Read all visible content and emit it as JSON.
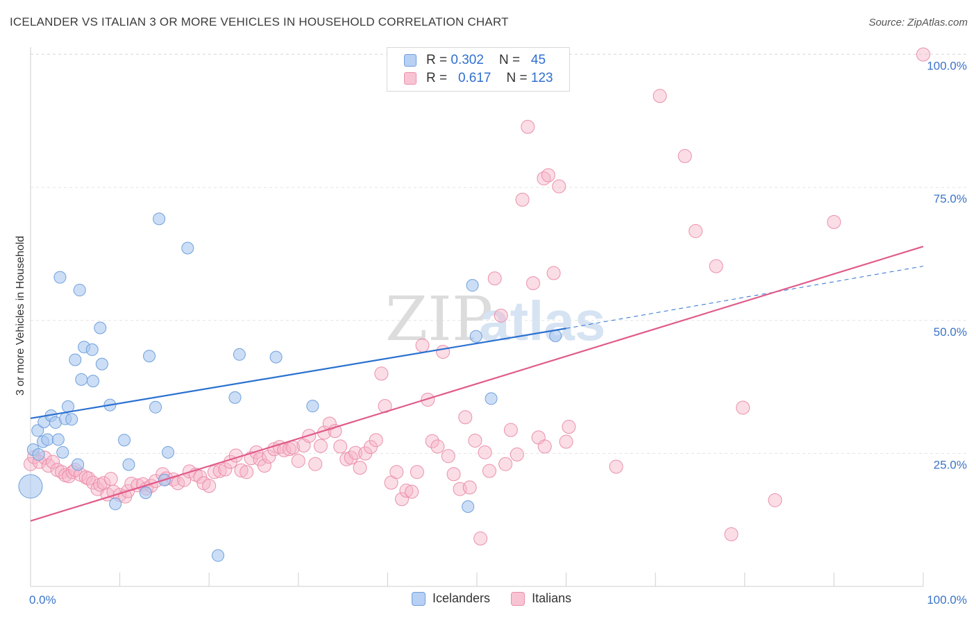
{
  "title": "ICELANDER VS ITALIAN 3 OR MORE VEHICLES IN HOUSEHOLD CORRELATION CHART",
  "source": "Source: ZipAtlas.com",
  "watermark": {
    "part1": "ZIP",
    "part2": "atlas"
  },
  "legend_top": {
    "rows": [
      {
        "r_label": "R =",
        "r_value": "0.302",
        "n_label": "N =",
        "n_value": "45"
      },
      {
        "r_label": "R =",
        "r_value": "0.617",
        "n_label": "N =",
        "n_value": "123"
      }
    ]
  },
  "legend_bottom": {
    "items": [
      "Icelanders",
      "Italians"
    ]
  },
  "colors": {
    "icelanders_fill": "#aac8f0",
    "icelanders_stroke": "#6f9fdc",
    "icelanders_line": "#2a70d0",
    "italians_fill": "#f6b4c8",
    "italians_stroke": "#ea8fac",
    "italians_line": "#e05a8a",
    "axis_text": "#3a74c8",
    "grid": "#e3e3e3"
  },
  "chart_data": {
    "type": "scatter",
    "title": "ICELANDER VS ITALIAN 3 OR MORE VEHICLES IN HOUSEHOLD CORRELATION CHART",
    "xlabel": "",
    "ylabel": "3 or more Vehicles in Household",
    "xlim": [
      0,
      100
    ],
    "ylim": [
      0,
      105
    ],
    "x_tick_labels": [
      "0.0%",
      "100.0%"
    ],
    "y_ticks": [
      {
        "value": 25,
        "label": "25.0%"
      },
      {
        "value": 50,
        "label": "50.0%"
      },
      {
        "value": 75,
        "label": "75.0%"
      },
      {
        "value": 100,
        "label": "100.0%"
      }
    ],
    "grid": true,
    "legend_position": "top-center",
    "series": [
      {
        "name": "Icelanders",
        "r": 0.302,
        "n": 45,
        "trend": {
          "x0": 0,
          "y0": 31.6,
          "x1": 60,
          "y1": 48.5,
          "dash_to_x": 100,
          "dash_to_y": 60.2
        },
        "points": [
          [
            0.0,
            18.8
          ],
          [
            0.3,
            25.7
          ],
          [
            0.8,
            29.3
          ],
          [
            0.9,
            24.8
          ],
          [
            1.4,
            27.2
          ],
          [
            1.5,
            30.9
          ],
          [
            1.9,
            27.6
          ],
          [
            2.3,
            32.1
          ],
          [
            2.8,
            30.8
          ],
          [
            3.1,
            27.6
          ],
          [
            3.3,
            58.1
          ],
          [
            3.6,
            25.2
          ],
          [
            3.9,
            31.5
          ],
          [
            4.2,
            33.8
          ],
          [
            4.6,
            31.4
          ],
          [
            5.0,
            42.6
          ],
          [
            5.3,
            22.9
          ],
          [
            5.5,
            55.7
          ],
          [
            5.7,
            38.9
          ],
          [
            6.0,
            45.0
          ],
          [
            6.9,
            44.5
          ],
          [
            7.0,
            38.6
          ],
          [
            7.8,
            48.6
          ],
          [
            8.0,
            41.8
          ],
          [
            8.9,
            34.1
          ],
          [
            9.5,
            15.5
          ],
          [
            10.5,
            27.5
          ],
          [
            11.0,
            22.9
          ],
          [
            12.9,
            17.6
          ],
          [
            13.3,
            43.3
          ],
          [
            14.0,
            33.7
          ],
          [
            14.4,
            69.1
          ],
          [
            15.0,
            20.0
          ],
          [
            15.4,
            25.2
          ],
          [
            17.6,
            63.6
          ],
          [
            21.0,
            5.8
          ],
          [
            22.9,
            35.5
          ],
          [
            23.4,
            43.6
          ],
          [
            27.5,
            43.1
          ],
          [
            31.6,
            33.9
          ],
          [
            49.9,
            47.0
          ],
          [
            51.6,
            35.3
          ],
          [
            49.0,
            15.0
          ],
          [
            49.5,
            56.6
          ],
          [
            58.8,
            47.1
          ]
        ]
      },
      {
        "name": "Italians",
        "r": 0.617,
        "n": 123,
        "trend": {
          "x0": 0,
          "y0": 12.3,
          "x1": 100,
          "y1": 63.9
        },
        "points": [
          [
            0.0,
            23.0
          ],
          [
            0.4,
            24.3
          ],
          [
            1.0,
            23.4
          ],
          [
            1.6,
            24.2
          ],
          [
            2.0,
            22.7
          ],
          [
            2.5,
            23.4
          ],
          [
            3.0,
            21.9
          ],
          [
            3.5,
            21.5
          ],
          [
            3.9,
            20.9
          ],
          [
            4.3,
            20.7
          ],
          [
            4.7,
            21.5
          ],
          [
            5.0,
            21.9
          ],
          [
            5.6,
            21.0
          ],
          [
            6.2,
            20.5
          ],
          [
            6.5,
            20.3
          ],
          [
            7.0,
            19.5
          ],
          [
            7.5,
            18.3
          ],
          [
            7.8,
            19.1
          ],
          [
            8.2,
            19.4
          ],
          [
            8.6,
            17.3
          ],
          [
            9.0,
            20.2
          ],
          [
            9.3,
            17.8
          ],
          [
            10.0,
            17.2
          ],
          [
            10.6,
            16.9
          ],
          [
            10.9,
            17.9
          ],
          [
            11.3,
            19.3
          ],
          [
            12.0,
            19.0
          ],
          [
            12.6,
            19.2
          ],
          [
            13.0,
            18.4
          ],
          [
            13.5,
            18.9
          ],
          [
            14.0,
            19.8
          ],
          [
            14.8,
            21.1
          ],
          [
            15.2,
            20.3
          ],
          [
            16.0,
            20.1
          ],
          [
            16.5,
            19.4
          ],
          [
            17.2,
            20.0
          ],
          [
            17.8,
            21.6
          ],
          [
            18.5,
            21.0
          ],
          [
            19.0,
            20.6
          ],
          [
            19.4,
            19.4
          ],
          [
            20.0,
            18.9
          ],
          [
            20.6,
            21.5
          ],
          [
            21.2,
            21.7
          ],
          [
            21.8,
            22.0
          ],
          [
            22.4,
            23.4
          ],
          [
            23.0,
            24.6
          ],
          [
            23.6,
            21.8
          ],
          [
            24.2,
            21.5
          ],
          [
            24.7,
            24.1
          ],
          [
            25.3,
            25.2
          ],
          [
            25.7,
            23.9
          ],
          [
            26.2,
            22.7
          ],
          [
            26.7,
            24.4
          ],
          [
            27.3,
            25.8
          ],
          [
            27.9,
            26.2
          ],
          [
            28.4,
            25.6
          ],
          [
            29.0,
            25.8
          ],
          [
            29.4,
            26.1
          ],
          [
            30.0,
            23.6
          ],
          [
            30.6,
            26.5
          ],
          [
            31.2,
            28.3
          ],
          [
            31.9,
            23.0
          ],
          [
            32.5,
            26.4
          ],
          [
            32.9,
            28.9
          ],
          [
            33.5,
            30.6
          ],
          [
            34.1,
            29.2
          ],
          [
            34.7,
            26.3
          ],
          [
            35.4,
            23.9
          ],
          [
            35.9,
            24.2
          ],
          [
            36.4,
            25.1
          ],
          [
            36.9,
            22.3
          ],
          [
            37.5,
            25.0
          ],
          [
            38.1,
            26.2
          ],
          [
            38.7,
            27.5
          ],
          [
            39.3,
            40.0
          ],
          [
            39.7,
            33.9
          ],
          [
            40.4,
            19.5
          ],
          [
            41.0,
            21.5
          ],
          [
            41.6,
            16.4
          ],
          [
            42.1,
            18.0
          ],
          [
            42.7,
            17.8
          ],
          [
            43.3,
            21.5
          ],
          [
            43.9,
            45.3
          ],
          [
            44.5,
            35.1
          ],
          [
            45.0,
            27.3
          ],
          [
            45.6,
            26.3
          ],
          [
            46.2,
            44.1
          ],
          [
            46.8,
            24.5
          ],
          [
            47.4,
            21.1
          ],
          [
            48.1,
            18.3
          ],
          [
            48.7,
            31.8
          ],
          [
            49.2,
            18.6
          ],
          [
            49.8,
            27.4
          ],
          [
            50.4,
            9.0
          ],
          [
            50.9,
            25.2
          ],
          [
            51.4,
            21.7
          ],
          [
            52.0,
            57.9
          ],
          [
            52.7,
            50.9
          ],
          [
            53.2,
            23.0
          ],
          [
            53.8,
            29.4
          ],
          [
            54.5,
            24.8
          ],
          [
            55.1,
            72.7
          ],
          [
            55.7,
            86.4
          ],
          [
            56.3,
            57.0
          ],
          [
            56.9,
            28.0
          ],
          [
            57.5,
            76.7
          ],
          [
            58.0,
            77.3
          ],
          [
            58.6,
            58.9
          ],
          [
            59.2,
            75.2
          ],
          [
            60.0,
            27.2
          ],
          [
            65.6,
            22.5
          ],
          [
            70.5,
            92.2
          ],
          [
            73.3,
            80.9
          ],
          [
            74.5,
            66.8
          ],
          [
            76.8,
            60.2
          ],
          [
            78.5,
            9.8
          ],
          [
            79.8,
            33.6
          ],
          [
            83.4,
            16.2
          ],
          [
            90.0,
            68.5
          ],
          [
            100.0,
            100.0
          ],
          [
            60.3,
            30.0
          ],
          [
            57.6,
            26.3
          ]
        ]
      }
    ]
  }
}
